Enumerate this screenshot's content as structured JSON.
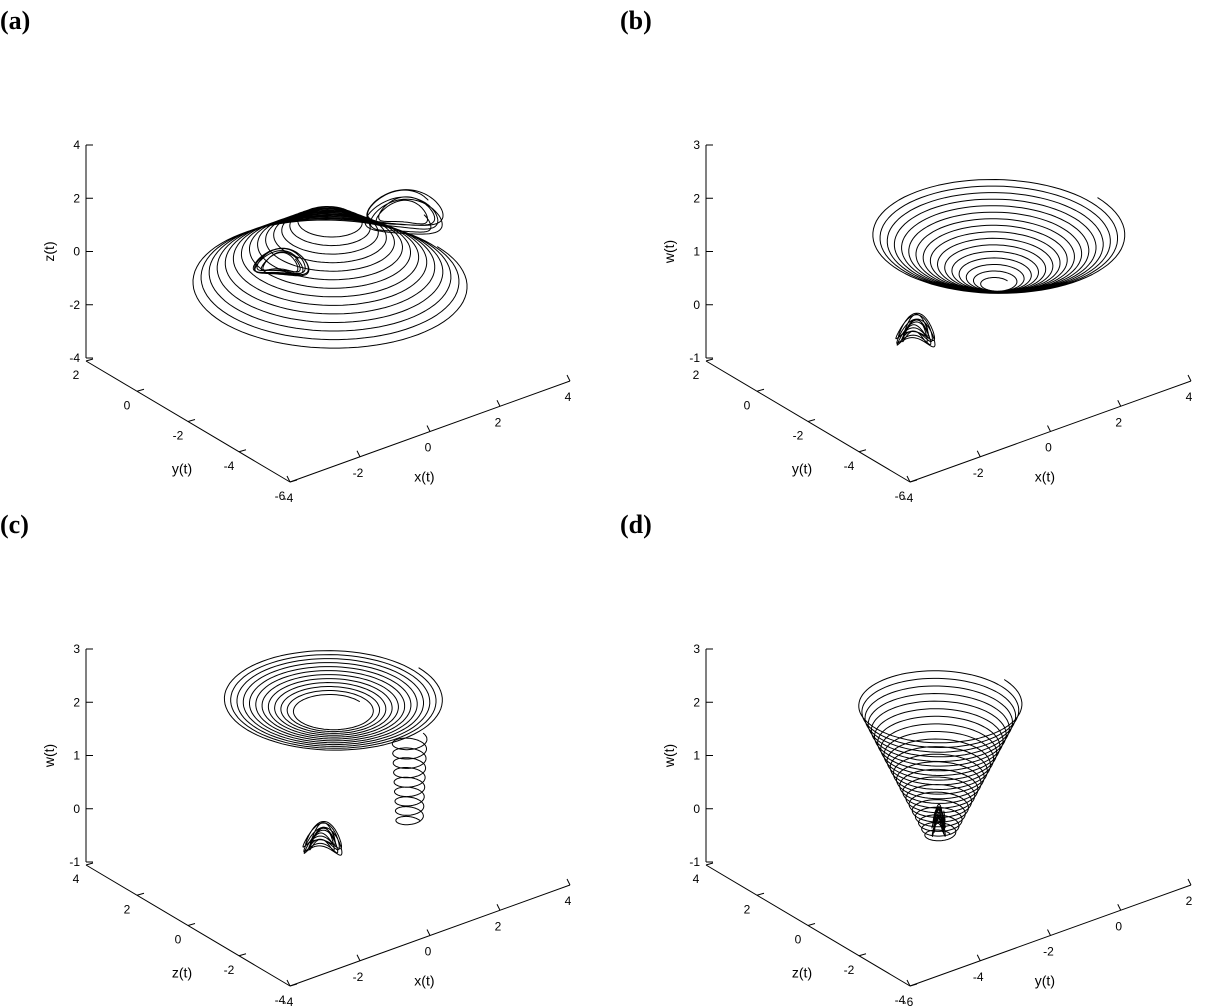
{
  "panels": [
    {
      "id": "a",
      "label": "(a)"
    },
    {
      "id": "b",
      "label": "(b)"
    },
    {
      "id": "c",
      "label": "(c)"
    },
    {
      "id": "d",
      "label": "(d)"
    }
  ],
  "chart_data": [
    {
      "type": "line",
      "projection": "3d",
      "panel": "(a)",
      "xlabel": "x(t)",
      "ylabel": "y(t)",
      "zlabel": "z(t)",
      "xlim": [
        -4,
        4
      ],
      "ylim": [
        -6,
        2
      ],
      "zlim": [
        -4,
        4
      ],
      "xticks": [
        "-4",
        "-2",
        "0",
        "2",
        "4"
      ],
      "yticks": [
        "-6",
        "-4",
        "-2",
        "0",
        "2"
      ],
      "zticks": [
        "-4",
        "-2",
        "0",
        "2",
        "4"
      ],
      "grid": false,
      "series": [
        {
          "kind": "expanding-spiral",
          "center": [
            0,
            -2,
            0
          ],
          "r0": 0.6,
          "dr": 0.18,
          "turns": 14,
          "dz": -0.18,
          "start_z": 1.6
        },
        {
          "kind": "loops",
          "center": [
            -1.2,
            -1.8,
            0.3
          ],
          "r": 0.5,
          "turns": 6,
          "dz": 0.01
        },
        {
          "kind": "loops",
          "center": [
            1.0,
            -3.6,
            2.4
          ],
          "r": 0.7,
          "turns": 6,
          "dz": -0.08
        }
      ]
    },
    {
      "type": "line",
      "projection": "3d",
      "panel": "(b)",
      "xlabel": "x(t)",
      "ylabel": "y(t)",
      "zlabel": "w(t)",
      "xlim": [
        -4,
        4
      ],
      "ylim": [
        -6,
        2
      ],
      "zlim": [
        -1,
        3
      ],
      "xticks": [
        "-4",
        "-2",
        "0",
        "2",
        "4"
      ],
      "yticks": [
        "-6",
        "-4",
        "-2",
        "0",
        "2"
      ],
      "zticks": [
        "-1",
        "0",
        "1",
        "2",
        "3"
      ],
      "grid": false,
      "series": [
        {
          "kind": "expanding-spiral",
          "center": [
            0.8,
            -2.8,
            1.6
          ],
          "r0": 0.3,
          "dr": 0.16,
          "turns": 16,
          "dz": 0.06,
          "start_z": 0.6
        },
        {
          "kind": "loops",
          "center": [
            -0.8,
            -1.8,
            -0.3
          ],
          "r": 0.35,
          "turns": 7,
          "dz": 0.03
        }
      ]
    },
    {
      "type": "line",
      "projection": "3d",
      "panel": "(c)",
      "xlabel": "x(t)",
      "ylabel": "z(t)",
      "zlabel": "w(t)",
      "xlim": [
        -4,
        4
      ],
      "ylim": [
        -4,
        4
      ],
      "zlim": [
        -1,
        3
      ],
      "xticks": [
        "-4",
        "-2",
        "0",
        "2",
        "4"
      ],
      "yticks": [
        "-4",
        "-2",
        "0",
        "2",
        "4"
      ],
      "zticks": [
        "-1",
        "0",
        "1",
        "2",
        "3"
      ],
      "grid": false,
      "series": [
        {
          "kind": "expanding-spiral",
          "center": [
            0.4,
            0.4,
            2.0
          ],
          "r0": 0.8,
          "dr": 0.14,
          "turns": 12,
          "dz": 0.02,
          "start_z": 1.8
        },
        {
          "kind": "expanding-spiral",
          "center": [
            1.6,
            -1.0,
            0.2
          ],
          "r0": 0.3,
          "dr": 0.01,
          "turns": 9,
          "dz": 0.18,
          "start_z": -0.2
        },
        {
          "kind": "loops",
          "center": [
            -0.6,
            -0.6,
            -0.2
          ],
          "r": 0.35,
          "turns": 7,
          "dz": 0.03
        }
      ]
    },
    {
      "type": "line",
      "projection": "3d",
      "panel": "(d)",
      "xlabel": "y(t)",
      "ylabel": "z(t)",
      "zlabel": "w(t)",
      "xlim": [
        -6,
        2
      ],
      "ylim": [
        -4,
        4
      ],
      "zlim": [
        -1,
        3
      ],
      "xticks": [
        "-6",
        "-4",
        "-2",
        "0",
        "2"
      ],
      "yticks": [
        "-4",
        "-2",
        "0",
        "2",
        "4"
      ],
      "zticks": [
        "-1",
        "0",
        "1",
        "2",
        "3"
      ],
      "grid": false,
      "series": [
        {
          "kind": "expanding-spiral",
          "center": [
            -2.4,
            -0.2,
            -0.2
          ],
          "r0": 0.3,
          "dr": 0.07,
          "turns": 22,
          "dz": 0.115,
          "start_z": -0.2
        },
        {
          "kind": "loops",
          "center": [
            -2.5,
            -0.3,
            0.0
          ],
          "r": 0.12,
          "turns": 8,
          "dz": 0.04
        }
      ]
    }
  ]
}
